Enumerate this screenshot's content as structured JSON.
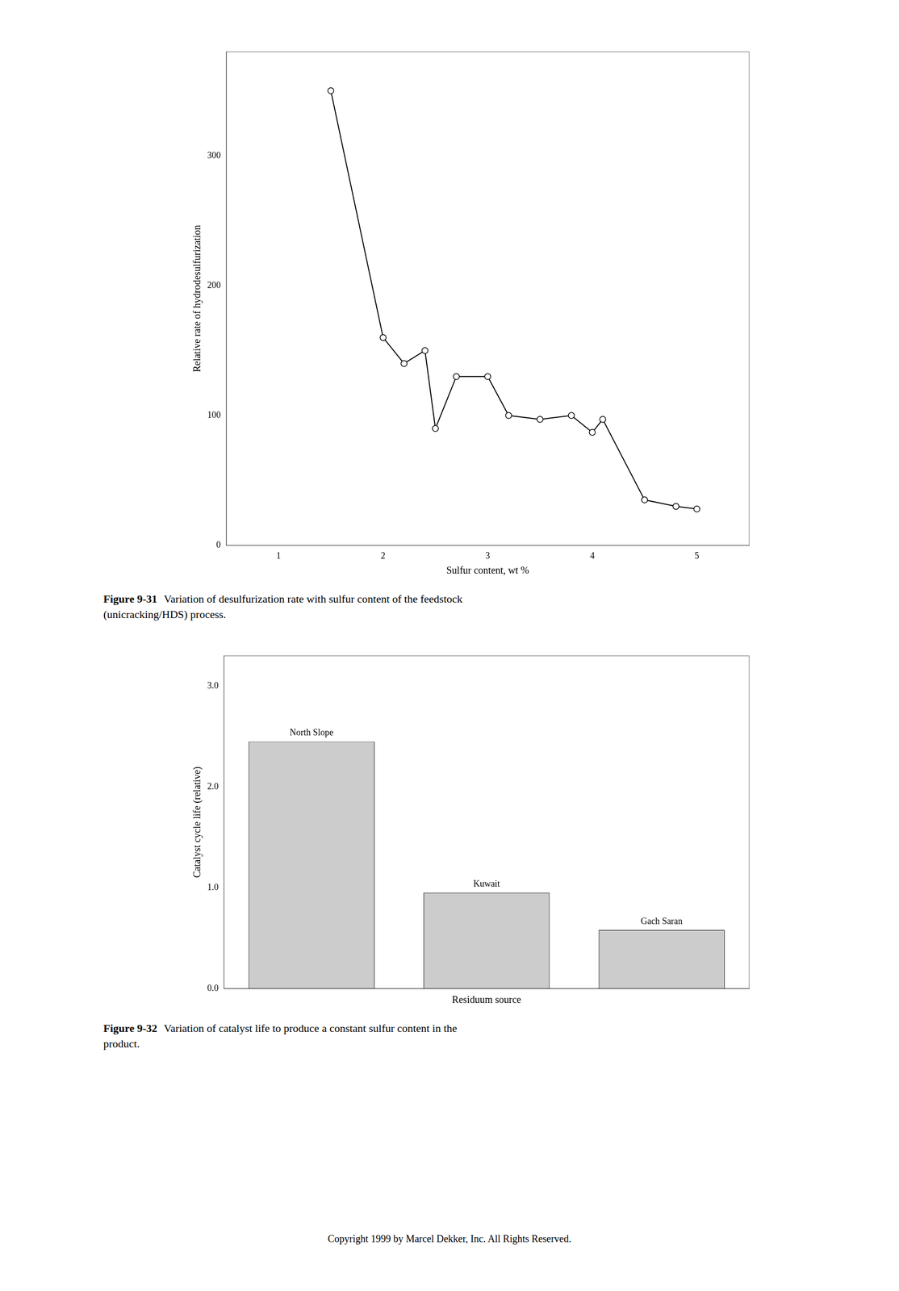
{
  "chart_data": [
    {
      "type": "line",
      "title": "Figure 9-31",
      "subtitle": "Variation of desulfurization rate with sulfur content of the feedstock\n(unicracking/HDS) process.",
      "x": [
        1.5,
        2.0,
        2.2,
        2.4,
        2.5,
        2.7,
        3.0,
        3.2,
        3.5,
        3.8,
        4.0,
        4.1,
        4.5,
        4.8,
        5.0
      ],
      "values": [
        350,
        160,
        140,
        150,
        90,
        130,
        130,
        100,
        97,
        100,
        87,
        97,
        35,
        30,
        28
      ],
      "x_label": "Sulfur content, wt %",
      "y_label": "Relative rate of hydrodesulfurization",
      "xlim": [
        0.5,
        5.5
      ],
      "xticks": [
        1,
        2,
        3,
        4,
        5
      ],
      "ylim": [
        0,
        380
      ],
      "yticks": [
        0,
        100,
        200,
        300
      ],
      "color": "#000000",
      "marker": "circle",
      "line_style": "solid",
      "grid": false,
      "legend": false
    },
    {
      "type": "bar",
      "title": "Figure 9-32",
      "subtitle": "Variation of catalyst life to produce a constant sulfur content in the\nproduct.",
      "categories": [
        "North Slope",
        "Kuwait",
        "Gach Saran"
      ],
      "values": [
        2.45,
        0.95,
        0.58
      ],
      "x_label": "Residuum source",
      "y_label": "Catalyst cycle life (relative)",
      "ylim": [
        0,
        3.3
      ],
      "yticks": [
        {
          "value": 0,
          "label": "0.0"
        },
        {
          "value": 1.0,
          "label": "1.0"
        },
        {
          "value": 2.0,
          "label": "2.0"
        },
        {
          "value": 3.0,
          "label": "3.0"
        }
      ],
      "color": "#cccccc",
      "grid": false,
      "legend": false,
      "tick_labels": "y",
      "annotations": [
        "Copyright 1999 by Marcel Dekker, Inc. All Rights Reserved."
      ]
    }
  ]
}
